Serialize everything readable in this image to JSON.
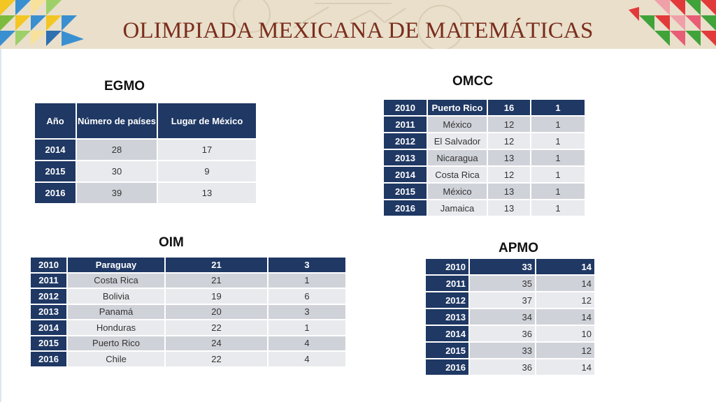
{
  "header": {
    "title": "OLIMPIADA MEXICANA DE MATEMÁTICAS"
  },
  "egmo": {
    "title": "EGMO",
    "columns": [
      "Año",
      "Número de países",
      "Lugar de México"
    ],
    "rows": [
      [
        "2014",
        "28",
        "17"
      ],
      [
        "2015",
        "30",
        "9"
      ],
      [
        "2016",
        "39",
        "13"
      ]
    ]
  },
  "omcc": {
    "title": "OMCC",
    "rows": [
      [
        "2010",
        "Puerto Rico",
        "16",
        "1"
      ],
      [
        "2011",
        "México",
        "12",
        "1"
      ],
      [
        "2012",
        "El Salvador",
        "12",
        "1"
      ],
      [
        "2013",
        "Nicaragua",
        "13",
        "1"
      ],
      [
        "2014",
        "Costa Rica",
        "12",
        "1"
      ],
      [
        "2015",
        "México",
        "13",
        "1"
      ],
      [
        "2016",
        "Jamaica",
        "13",
        "1"
      ]
    ]
  },
  "oim": {
    "title": "OIM",
    "rows": [
      [
        "2010",
        "Paraguay",
        "21",
        "3"
      ],
      [
        "2011",
        "Costa Rica",
        "21",
        "1"
      ],
      [
        "2012",
        "Bolivia",
        "19",
        "6"
      ],
      [
        "2013",
        "Panamá",
        "20",
        "3"
      ],
      [
        "2014",
        "Honduras",
        "22",
        "1"
      ],
      [
        "2015",
        "Puerto Rico",
        "24",
        "4"
      ],
      [
        "2016",
        "Chile",
        "22",
        "4"
      ]
    ]
  },
  "apmo": {
    "title": "APMO",
    "rows": [
      [
        "2010",
        "33",
        "14"
      ],
      [
        "2011",
        "35",
        "14"
      ],
      [
        "2012",
        "37",
        "12"
      ],
      [
        "2013",
        "34",
        "14"
      ],
      [
        "2014",
        "36",
        "10"
      ],
      [
        "2015",
        "33",
        "12"
      ],
      [
        "2016",
        "36",
        "14"
      ]
    ]
  },
  "colors": {
    "header_navy": "#1f3864",
    "title_brown": "#7a2e1c",
    "cell_gray": "#d0d2d9",
    "cell_light": "#e8e9ed",
    "banner_bg": "#e9dfcb"
  }
}
